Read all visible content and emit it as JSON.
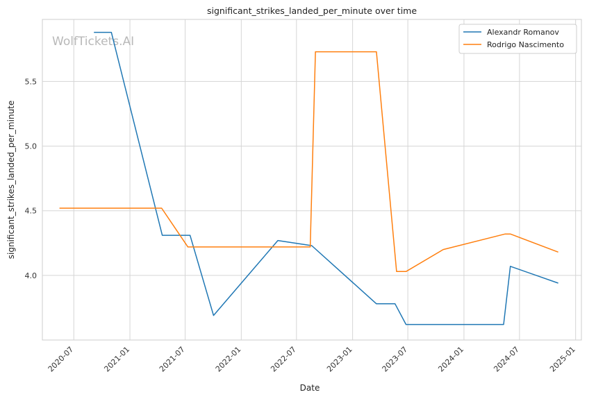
{
  "chart_data": {
    "type": "line",
    "title": "significant_strikes_landed_per_minute over time",
    "xlabel": "Date",
    "ylabel": "significant_strikes_landed_per_minute",
    "watermark": "WolfTickets.AI",
    "x_ticks": [
      "2020-07",
      "2021-01",
      "2021-07",
      "2022-01",
      "2022-07",
      "2023-01",
      "2023-07",
      "2024-01",
      "2024-07",
      "2025-01"
    ],
    "y_ticks": [
      "4.0",
      "4.5",
      "5.0",
      "5.5"
    ],
    "xlim": [
      "2020-03-20",
      "2025-01-20"
    ],
    "ylim": [
      3.5,
      5.98
    ],
    "grid": true,
    "legend_position": "top-right",
    "series": [
      {
        "name": "Alexandr Romanov",
        "color": "#1f77b4",
        "x": [
          "2020-09-05",
          "2020-11-01",
          "2021-04-17",
          "2021-07-17",
          "2021-10-02",
          "2022-05-01",
          "2022-08-20",
          "2023-03-20",
          "2023-05-20",
          "2023-06-25",
          "2024-05-10",
          "2024-06-01",
          "2024-11-05"
        ],
        "values": [
          5.88,
          5.88,
          4.31,
          4.31,
          3.69,
          4.27,
          4.23,
          3.78,
          3.78,
          3.62,
          3.62,
          4.07,
          3.94
        ]
      },
      {
        "name": "Rodrigo Nascimento",
        "color": "#ff7f0e",
        "x": [
          "2020-05-15",
          "2021-04-15",
          "2021-07-10",
          "2022-08-15",
          "2022-09-01",
          "2023-03-20",
          "2023-05-25",
          "2023-06-25",
          "2023-10-25",
          "2024-05-15",
          "2024-06-01",
          "2024-11-05"
        ],
        "values": [
          4.52,
          4.52,
          4.22,
          4.22,
          5.73,
          5.73,
          4.03,
          4.03,
          4.2,
          4.32,
          4.32,
          4.18
        ]
      }
    ]
  }
}
